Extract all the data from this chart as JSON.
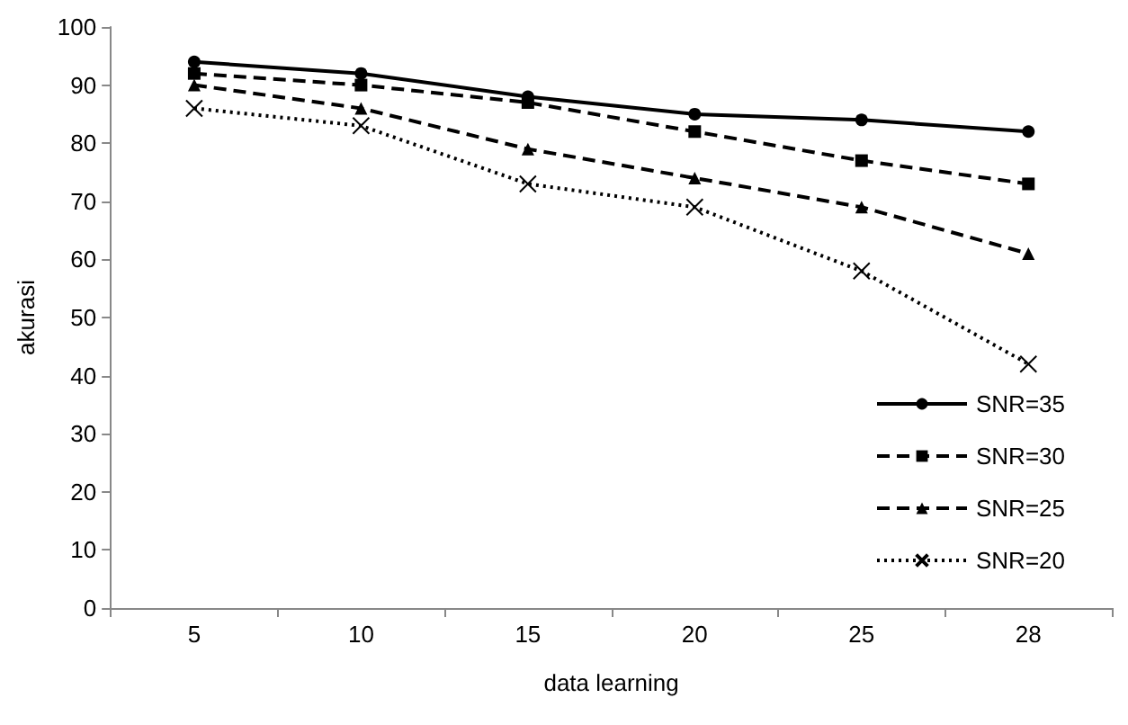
{
  "chart_data": {
    "type": "line",
    "xlabel": "data learning",
    "ylabel": "akurasi",
    "categories": [
      "5",
      "10",
      "15",
      "20",
      "25",
      "28"
    ],
    "ylim": [
      0,
      100
    ],
    "yticks": [
      0,
      10,
      20,
      30,
      40,
      50,
      60,
      70,
      80,
      90,
      100
    ],
    "grid": false,
    "legend": "bottom right",
    "series": [
      {
        "name": "SNR=35",
        "color": "#000000",
        "marker": "circle",
        "line_style": "solid",
        "values": [
          94,
          92,
          88,
          85,
          84,
          82
        ]
      },
      {
        "name": "SNR=30",
        "color": "#000000",
        "marker": "square",
        "line_style": "dashed",
        "values": [
          92,
          90,
          87,
          82,
          77,
          73
        ]
      },
      {
        "name": "SNR=25",
        "color": "#000000",
        "marker": "triangle",
        "line_style": "dashed",
        "values": [
          90,
          86,
          79,
          74,
          69,
          61
        ]
      },
      {
        "name": "SNR=20",
        "color": "#000000",
        "marker": "cross",
        "line_style": "dotted",
        "values": [
          86,
          83,
          73,
          69,
          58,
          42
        ]
      }
    ]
  }
}
